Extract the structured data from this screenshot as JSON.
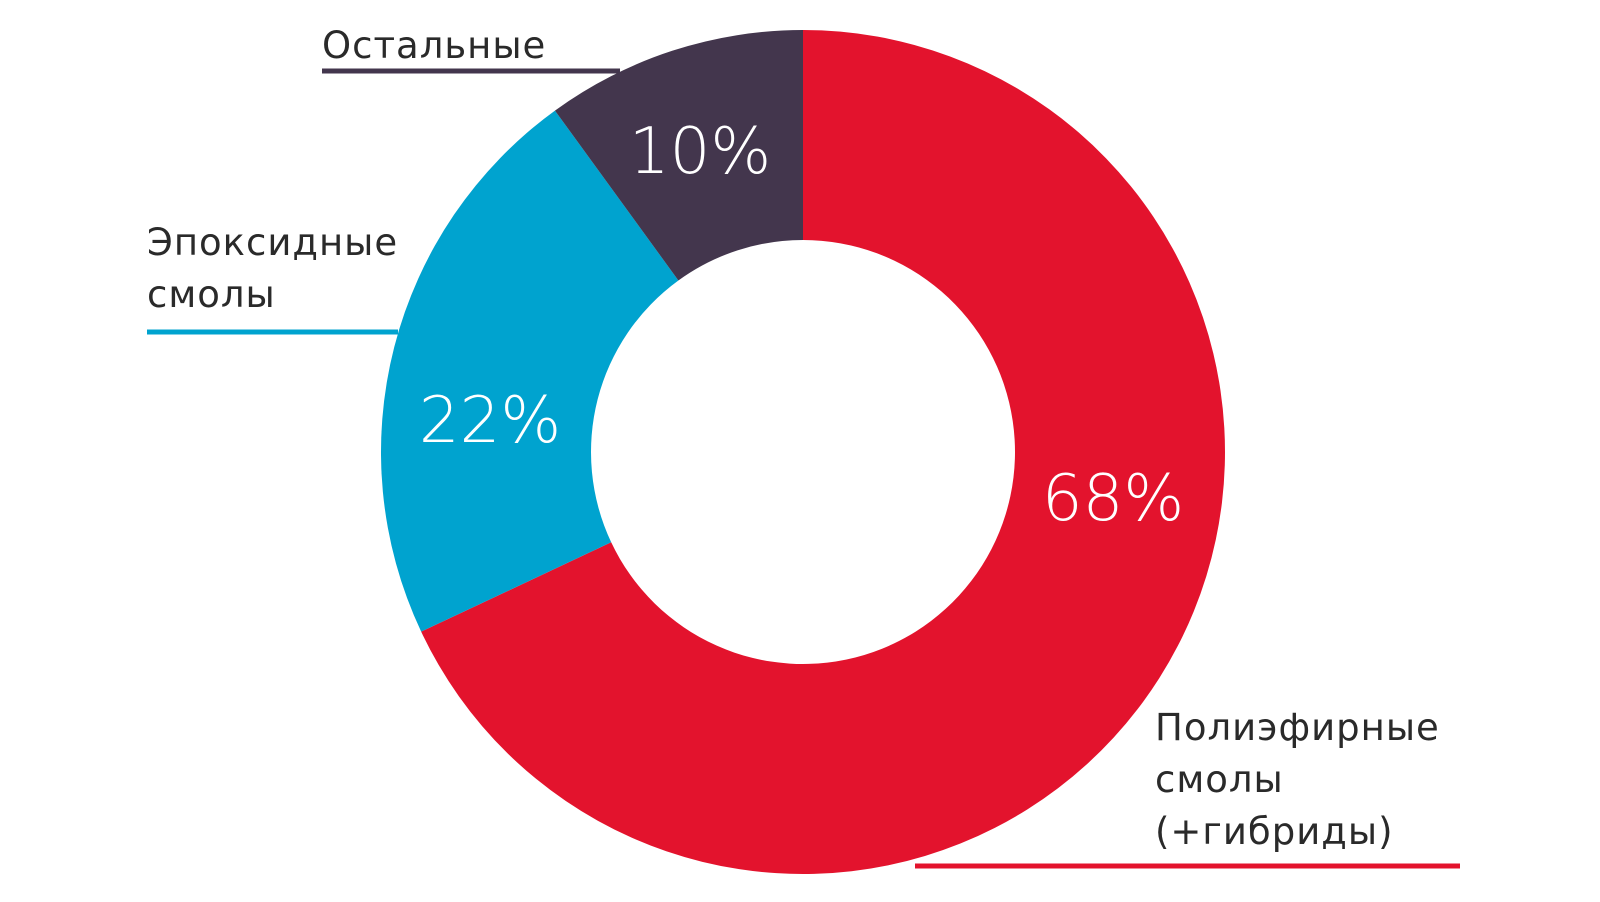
{
  "chart_data": {
    "type": "pie",
    "donut": true,
    "title": "",
    "start_angle_deg": 0,
    "direction": "clockwise",
    "slices": [
      {
        "key": "polyester",
        "name_lines": [
          "Полиэфирные",
          "смолы",
          "(+гибриды)"
        ],
        "value": 68,
        "label": "68%",
        "color": "#e3132d"
      },
      {
        "key": "epoxy",
        "name_lines": [
          "Эпоксидные",
          "смолы"
        ],
        "value": 22,
        "label": "22%",
        "color": "#00a3cf"
      },
      {
        "key": "other",
        "name_lines": [
          "Остальные"
        ],
        "value": 10,
        "label": "10%",
        "color": "#43364d"
      }
    ]
  }
}
